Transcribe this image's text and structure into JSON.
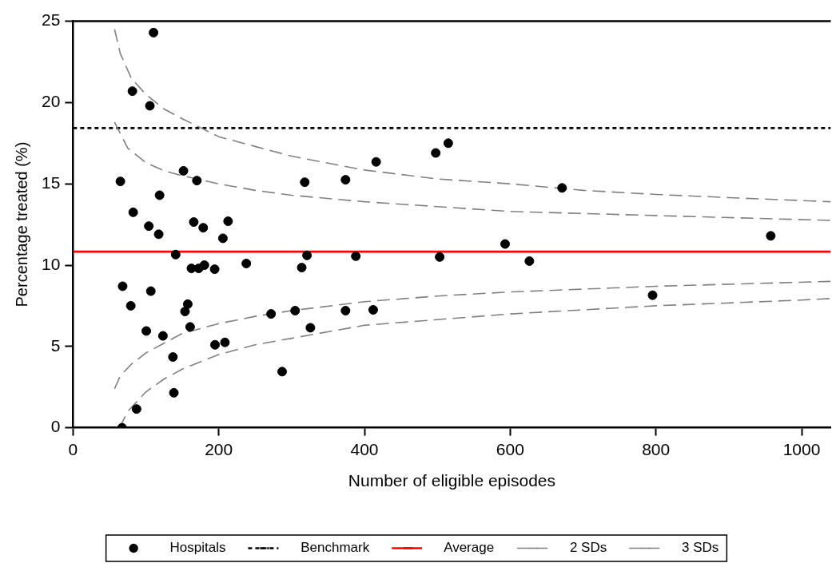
{
  "chart_data": {
    "type": "scatter",
    "xlabel": "Number of eligible episodes",
    "ylabel": "Percentage treated (%)",
    "xlim": [
      0,
      1040
    ],
    "xticks": [
      0,
      200,
      400,
      600,
      800,
      1000
    ],
    "ylim": [
      0,
      25
    ],
    "yticks": [
      0,
      5,
      10,
      15,
      20,
      25
    ],
    "grid": false,
    "legend": "bottom",
    "marker": "circle",
    "ref_lines": [
      {
        "axis": "y",
        "value": 18.43,
        "label": "Benchmark",
        "color": "#000000",
        "line_style": "dotted"
      },
      {
        "axis": "y",
        "value": 10.83,
        "label": "Average",
        "color": "#ff0000",
        "line_style": "solid"
      }
    ],
    "series": [
      {
        "name": "Hospitals",
        "type": "scatter",
        "color": "#000000",
        "x": [
          110.5,
          81.5,
          105.5,
          65,
          151.6,
          170,
          118.8,
          82.6,
          104,
          117.6,
          165.7,
          178.7,
          212.8,
          205.7,
          140.9,
          162.5,
          172.5,
          180.3,
          194.4,
          237.8,
          68.1,
          106.8,
          79.3,
          157.5,
          153.7,
          160.7,
          100.6,
          123.4,
          271.8,
          194.9,
          208.5,
          137.1,
          138.4,
          87.2,
          67.3,
          318,
          374,
          416,
          497.8,
          515,
          671.2,
          593,
          626.3,
          321.1,
          313.9,
          388.1,
          503.2,
          304.8,
          374,
          412,
          325.8,
          287,
          957.6,
          795.4
        ],
        "values": [
          24.3,
          20.7,
          19.8,
          15.15,
          15.8,
          15.2,
          14.3,
          13.25,
          12.4,
          11.9,
          12.65,
          12.3,
          12.7,
          11.65,
          10.65,
          9.8,
          9.8,
          10,
          9.75,
          10.1,
          8.7,
          8.4,
          7.5,
          7.6,
          7.15,
          6.2,
          5.95,
          5.65,
          7,
          5.1,
          5.25,
          4.35,
          2.15,
          1.15,
          0,
          15.1,
          15.25,
          16.35,
          16.9,
          17.5,
          14.75,
          11.3,
          10.25,
          10.6,
          9.85,
          10.55,
          10.5,
          7.2,
          7.2,
          7.25,
          6.15,
          3.45,
          11.8,
          8.15
        ]
      },
      {
        "name": "2 SDs",
        "type": "line",
        "marker": "none",
        "color": "#808080",
        "line_style": "dashed",
        "x": [
          57,
          75,
          100,
          125,
          150,
          200,
          250,
          300,
          400,
          600,
          800,
          1040
        ],
        "values": [
          18.8,
          17.2,
          16.3,
          15.8,
          15.5,
          15,
          14.6,
          14.3,
          13.9,
          13.3,
          13.05,
          12.75
        ]
      },
      {
        "type": "line",
        "marker": "none",
        "color": "#808080",
        "line_style": "dashed",
        "x": [
          57,
          65,
          80,
          100,
          125,
          150,
          200,
          250,
          300,
          400,
          500,
          600,
          800,
          1040
        ],
        "values": [
          2.4,
          3.2,
          3.9,
          4.6,
          5.2,
          5.8,
          6.4,
          6.85,
          7.2,
          7.75,
          8.1,
          8.35,
          8.7,
          9
        ]
      },
      {
        "name": "3 SDs",
        "type": "line",
        "marker": "none",
        "color": "#808080",
        "line_style": "dashed",
        "x": [
          57,
          65,
          80,
          100,
          125,
          150,
          200,
          250,
          300,
          400,
          500,
          600,
          700,
          800,
          900,
          1040
        ],
        "values": [
          24.5,
          23,
          21.5,
          20.5,
          19.6,
          19,
          17.9,
          17.3,
          16.7,
          15.85,
          15.3,
          15,
          14.6,
          14.35,
          14.15,
          13.9
        ]
      },
      {
        "type": "line",
        "marker": "none",
        "color": "#808080",
        "line_style": "dashed",
        "x": [
          64,
          75,
          100,
          125,
          150,
          200,
          250,
          300,
          400,
          500,
          600,
          800,
          1000,
          1040
        ],
        "values": [
          0,
          1,
          2.2,
          3,
          3.6,
          4.5,
          5.1,
          5.5,
          6.3,
          6.65,
          7,
          7.5,
          7.85,
          7.95
        ]
      }
    ]
  }
}
